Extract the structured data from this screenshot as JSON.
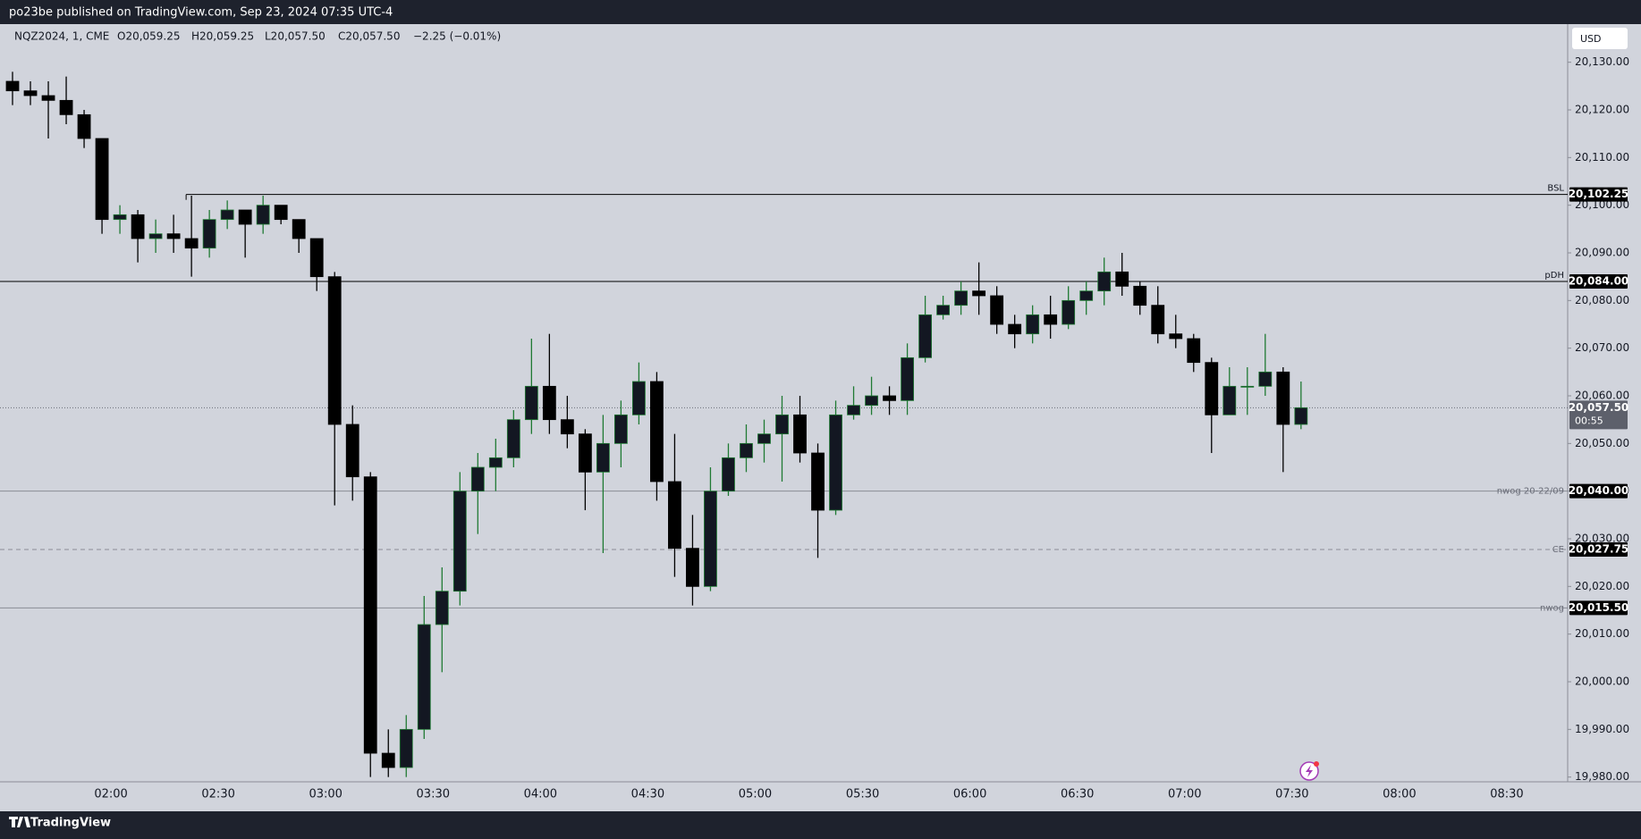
{
  "header": {
    "text": "po23be published on TradingView.com, Sep 23, 2024 07:35 UTC-4"
  },
  "footer": {
    "brand": "TradingView"
  },
  "chart_data": {
    "type": "candlestick",
    "currency": "USD",
    "legend": {
      "symbol": "NQZ2024, 1, CME",
      "open": "O20,059.25",
      "high": "H20,059.25",
      "low": "L20,057.50",
      "close": "C20,057.50",
      "change": "−2.25 (−0.01%)"
    },
    "x": [
      "01:30",
      "01:35",
      "01:40",
      "01:45",
      "01:50",
      "01:55",
      "02:00",
      "02:05",
      "02:10",
      "02:15",
      "02:20",
      "02:25",
      "02:30",
      "02:35",
      "02:40",
      "02:45",
      "02:50",
      "02:55",
      "03:00",
      "03:05",
      "03:10",
      "03:15",
      "03:20",
      "03:25",
      "03:30",
      "03:35",
      "03:40",
      "03:45",
      "03:50",
      "03:55",
      "04:00",
      "04:05",
      "04:10",
      "04:15",
      "04:20",
      "04:25",
      "04:30",
      "04:35",
      "04:40",
      "04:45",
      "04:50",
      "04:55",
      "05:00",
      "05:05",
      "05:10",
      "05:15",
      "05:20",
      "05:25",
      "05:30",
      "05:35",
      "05:40",
      "05:45",
      "05:50",
      "05:55",
      "06:00",
      "06:05",
      "06:10",
      "06:15",
      "06:20",
      "06:25",
      "06:30",
      "06:35",
      "06:40",
      "06:45",
      "06:50",
      "06:55",
      "07:00",
      "07:05",
      "07:10",
      "07:15",
      "07:20",
      "07:25",
      "07:30"
    ],
    "open": [
      20126,
      20124,
      20123,
      20122,
      20119,
      20114,
      20097,
      20098,
      20093,
      20094,
      20093,
      20091,
      20097,
      20099,
      20096,
      20100,
      20097,
      20093,
      20085,
      20054,
      20043,
      19985,
      19982,
      19990,
      20012,
      20019,
      20040,
      20045,
      20047,
      20055,
      20062,
      20055,
      20052,
      20044,
      20050,
      20056,
      20063,
      20042,
      20028,
      20020,
      20040,
      20047,
      20050,
      20052,
      20056,
      20048,
      20036,
      20056,
      20058,
      20060,
      20059,
      20068,
      20077,
      20079,
      20082,
      20081,
      20075,
      20073,
      20077,
      20075,
      20080,
      20082,
      20086,
      20083,
      20079,
      20073,
      20072,
      20067,
      20056,
      20062,
      20062,
      20065,
      20054
    ],
    "high": [
      20128,
      20126,
      20126,
      20127,
      20120,
      20114,
      20100,
      20099,
      20097,
      20098,
      20102,
      20099,
      20101,
      20099,
      20102,
      20100,
      20097,
      20093,
      20086,
      20058,
      20044,
      19990,
      19993,
      20018,
      20024,
      20044,
      20048,
      20051,
      20057,
      20072,
      20073,
      20060,
      20053,
      20056,
      20059,
      20067,
      20065,
      20052,
      20035,
      20045,
      20050,
      20054,
      20055,
      20060,
      20060,
      20050,
      20059,
      20062,
      20064,
      20062,
      20071,
      20081,
      20081,
      20084,
      20088,
      20083,
      20077,
      20079,
      20081,
      20083,
      20084,
      20089,
      20090,
      20084,
      20083,
      20077,
      20073,
      20068,
      20066,
      20066,
      20073,
      20066,
      20063
    ],
    "low": [
      20121,
      20121,
      20114,
      20117,
      20112,
      20094,
      20094,
      20088,
      20090,
      20090,
      20085,
      20089,
      20095,
      20089,
      20094,
      20096,
      20090,
      20082,
      20037,
      20038,
      19980,
      19980,
      19980,
      19988,
      20002,
      20016,
      20031,
      20040,
      20045,
      20052,
      20052,
      20049,
      20036,
      20027,
      20045,
      20054,
      20038,
      20022,
      20016,
      20019,
      20039,
      20044,
      20046,
      20042,
      20046,
      20026,
      20035,
      20055,
      20056,
      20056,
      20056,
      20067,
      20076,
      20077,
      20077,
      20073,
      20070,
      20071,
      20072,
      20074,
      20077,
      20079,
      20081,
      20077,
      20071,
      20070,
      20065,
      20048,
      20056,
      20056,
      20060,
      20044,
      20053
    ],
    "close": [
      20124,
      20123,
      20122,
      20119,
      20114,
      20097,
      20098,
      20093,
      20094,
      20093,
      20091,
      20097,
      20099,
      20096,
      20100,
      20097,
      20093,
      20085,
      20054,
      20043,
      19985,
      19982,
      19990,
      20012,
      20019,
      20040,
      20045,
      20047,
      20055,
      20062,
      20055,
      20052,
      20044,
      20050,
      20056,
      20063,
      20042,
      20028,
      20020,
      20040,
      20047,
      20050,
      20052,
      20056,
      20048,
      20036,
      20056,
      20058,
      20060,
      20059,
      20068,
      20077,
      20079,
      20082,
      20081,
      20075,
      20073,
      20077,
      20075,
      20080,
      20082,
      20086,
      20083,
      20079,
      20073,
      20072,
      20067,
      20056,
      20062,
      20062,
      20065,
      20054,
      20057.5
    ],
    "up_color": "#1f7a33",
    "down_color": "#000000",
    "body_color": "#131722",
    "xlim": [
      "01:29",
      "08:47"
    ],
    "xticks": [
      "02:00",
      "02:30",
      "03:00",
      "03:30",
      "04:00",
      "04:30",
      "05:00",
      "05:30",
      "06:00",
      "06:30",
      "07:00",
      "07:30",
      "08:00",
      "08:30"
    ],
    "ylim": [
      19979,
      20138
    ],
    "yticks": [
      {
        "value": 19980,
        "label": "19,980.00"
      },
      {
        "value": 19990,
        "label": "19,990.00"
      },
      {
        "value": 20000,
        "label": "20,000.00"
      },
      {
        "value": 20010,
        "label": "20,010.00"
      },
      {
        "value": 20020,
        "label": "20,020.00"
      },
      {
        "value": 20030,
        "label": "20,030.00"
      },
      {
        "value": 20040,
        "label": "20,040.00"
      },
      {
        "value": 20050,
        "label": "20,050.00"
      },
      {
        "value": 20060,
        "label": "20,060.00"
      },
      {
        "value": 20070,
        "label": "20,070.00"
      },
      {
        "value": 20080,
        "label": "20,080.00"
      },
      {
        "value": 20090,
        "label": "20,090.00"
      },
      {
        "value": 20100,
        "label": "20,100.00"
      },
      {
        "value": 20110,
        "label": "20,110.00"
      },
      {
        "value": 20120,
        "label": "20,120.00"
      },
      {
        "value": 20130,
        "label": "20,130.00"
      }
    ],
    "grid": false,
    "levels": [
      {
        "name": "BSL",
        "price": {
          "value": 20102.25,
          "label": "20,102.25"
        },
        "style": "solid",
        "color": "#000000",
        "start": "02:21"
      },
      {
        "name": "pDH",
        "price": {
          "value": 20084,
          "label": "20,084.00"
        },
        "style": "solid",
        "color": "#000000"
      },
      {
        "name": "nwog 20-22/09",
        "price": {
          "value": 20040,
          "label": "20,040.00"
        },
        "style": "solid",
        "color": "#8a8d96"
      },
      {
        "name": "CE",
        "price": {
          "value": 20027.75,
          "label": "20,027.75"
        },
        "style": "dashed",
        "color": "#8a8d96"
      },
      {
        "name": "nwog",
        "price": {
          "value": 20015.5,
          "label": "20,015.50"
        },
        "style": "solid",
        "color": "#8a8d96"
      }
    ],
    "current": {
      "price": {
        "value": 20057.5,
        "label": "20,057.50"
      },
      "countdown": "00:55",
      "color": "#5d606b"
    }
  }
}
